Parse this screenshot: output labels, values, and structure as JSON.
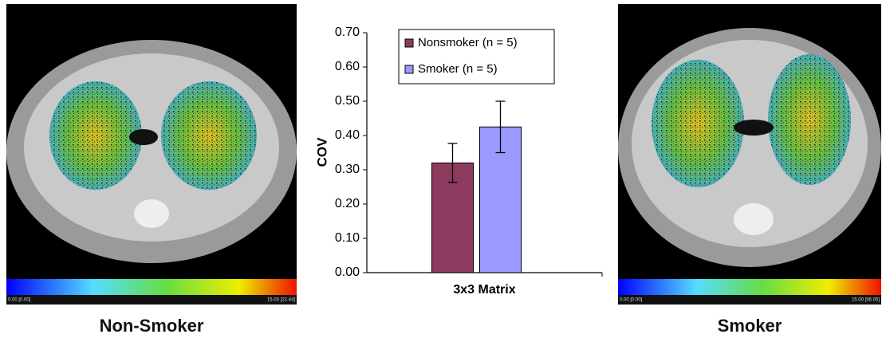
{
  "chart_data": {
    "type": "bar",
    "categories": [
      "3x3 Matrix"
    ],
    "series": [
      {
        "name": "Nonsmoker (n = 5)",
        "color": "#8c3b5e",
        "values": [
          0.32
        ],
        "errors": [
          0.057
        ]
      },
      {
        "name": "Smoker (n = 5)",
        "color": "#9b9bff",
        "values": [
          0.425
        ],
        "errors": [
          0.075
        ]
      }
    ],
    "y_label": "COV",
    "ylim": [
      0,
      0.7
    ],
    "yticks": [
      {
        "value": 0,
        "label": "0.00"
      },
      {
        "value": 0.1,
        "label": "0.10"
      },
      {
        "value": 0.2,
        "label": "0.20"
      },
      {
        "value": 0.3,
        "label": "0.30"
      },
      {
        "value": 0.4,
        "label": "0.40"
      },
      {
        "value": 0.5,
        "label": "0.50"
      },
      {
        "value": 0.6,
        "label": "0.60"
      },
      {
        "value": 0.7,
        "label": "0.70"
      }
    ],
    "legend": "top"
  },
  "panels": [
    {
      "caption": "Non-Smoker",
      "scale_min": "0.00 [0.00]",
      "scale_max": "15.00 [22.44]"
    },
    {
      "caption": "Smoker",
      "scale_min": "0.00 [0.00]",
      "scale_max": "15.00 [56.05]"
    }
  ]
}
